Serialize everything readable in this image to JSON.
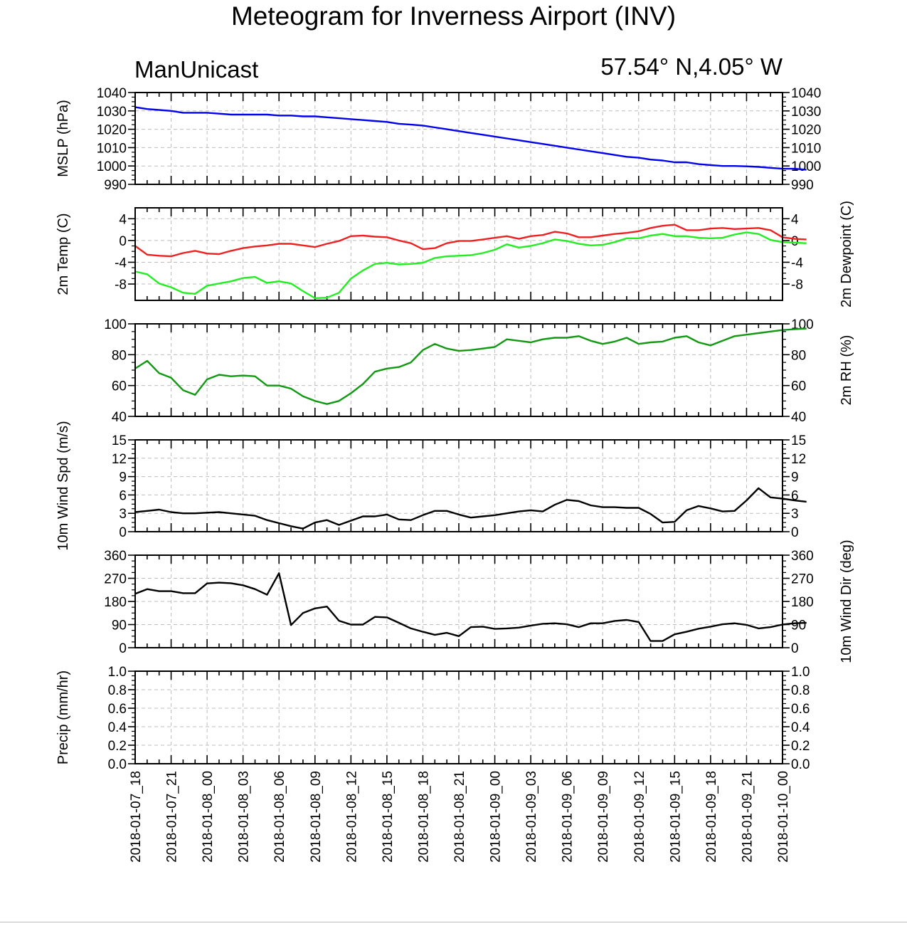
{
  "title": "Meteogram for Inverness Airport (INV)",
  "left_subtitle": "ManUnicast",
  "right_subtitle": "57.54° N,4.05° W",
  "chart_data": {
    "type": "line",
    "x_tick_labels": [
      "2018-01-07_18",
      "2018-01-07_21",
      "2018-01-08_00",
      "2018-01-08_03",
      "2018-01-08_06",
      "2018-01-08_09",
      "2018-01-08_12",
      "2018-01-08_15",
      "2018-01-08_18",
      "2018-01-08_21",
      "2018-01-09_00",
      "2018-01-09_03",
      "2018-01-09_06",
      "2018-01-09_09",
      "2018-01-09_12",
      "2018-01-09_15",
      "2018-01-09_18",
      "2018-01-09_21",
      "2018-01-10_00"
    ],
    "x_step_hours": 1,
    "x_range_hours": [
      0,
      54
    ],
    "grid": true,
    "panels": [
      {
        "id": "mslp",
        "ylabel_left": "MSLP (hPa)",
        "ylabel_right": "",
        "ylim": [
          990,
          1040
        ],
        "yticks": [
          990,
          1000,
          1010,
          1020,
          1030,
          1040
        ],
        "ytick_labels": [
          "990",
          "1000",
          "1010",
          "1020",
          "1030",
          "1040"
        ],
        "right_tick_labels": true,
        "series": [
          {
            "color": "#0000ee",
            "values": [
              1032,
              1031,
              1030.5,
              1030,
              1029,
              1029,
              1029,
              1028.5,
              1028,
              1028,
              1028,
              1028,
              1027.5,
              1027.5,
              1027,
              1027,
              1026.5,
              1026,
              1025.5,
              1025,
              1024.5,
              1024,
              1023,
              1022.5,
              1022,
              1021,
              1020,
              1019,
              1018,
              1017,
              1016,
              1015,
              1014,
              1013,
              1012,
              1011,
              1010,
              1009,
              1008,
              1007,
              1006,
              1005,
              1004.5,
              1003.5,
              1003,
              1002,
              1002,
              1001,
              1000.5,
              1000,
              1000,
              999.8,
              999.5,
              999,
              998.5,
              998.5,
              998
            ]
          }
        ]
      },
      {
        "id": "temp",
        "ylabel_left": "2m Temp (C)",
        "ylabel_right": "2m Dewpoint (C)",
        "ylim": [
          -11,
          6
        ],
        "yticks": [
          -8,
          -4,
          0,
          4
        ],
        "ytick_labels": [
          "-8",
          "-4",
          "0",
          "4"
        ],
        "right_tick_labels": true,
        "series": [
          {
            "color": "#ee2020",
            "values": [
              -1,
              -2.6,
              -2.8,
              -2.9,
              -2.3,
              -1.9,
              -2.4,
              -2.5,
              -1.9,
              -1.4,
              -1.1,
              -0.9,
              -0.6,
              -0.6,
              -0.9,
              -1.2,
              -0.6,
              -0.1,
              0.8,
              0.9,
              0.7,
              0.6,
              0,
              -0.5,
              -1.6,
              -1.4,
              -0.5,
              -0.1,
              -0.1,
              0.2,
              0.5,
              0.8,
              0.3,
              0.8,
              1,
              1.6,
              1.3,
              0.6,
              0.6,
              0.9,
              1.2,
              1.4,
              1.7,
              2.3,
              2.7,
              2.9,
              1.9,
              1.9,
              2.2,
              2.3,
              2.1,
              2.2,
              2.3,
              1.9,
              0.6,
              0.3,
              0.2
            ]
          },
          {
            "color": "#22ee22",
            "values": [
              -5.7,
              -6.2,
              -7.9,
              -8.6,
              -9.6,
              -9.8,
              -8.3,
              -7.9,
              -7.5,
              -6.9,
              -6.7,
              -7.8,
              -7.5,
              -7.9,
              -9.3,
              -10.6,
              -10.5,
              -9.6,
              -7,
              -5.5,
              -4.3,
              -4.1,
              -4.4,
              -4.3,
              -4.1,
              -3.2,
              -2.9,
              -2.8,
              -2.7,
              -2.3,
              -1.7,
              -0.7,
              -1.3,
              -1,
              -0.5,
              0.2,
              -0.1,
              -0.6,
              -0.9,
              -0.8,
              -0.3,
              0.4,
              0.4,
              0.9,
              1.2,
              0.8,
              0.8,
              0.5,
              0.4,
              0.5,
              1.1,
              1.5,
              1.2,
              0.1,
              -0.3,
              -0.4,
              -0.5
            ]
          }
        ]
      },
      {
        "id": "rh",
        "ylabel_left": "",
        "ylabel_right": "2m RH (%)",
        "ylim": [
          40,
          100
        ],
        "yticks": [
          40,
          60,
          80,
          100
        ],
        "ytick_labels": [
          "40",
          "60",
          "80",
          "100"
        ],
        "right_tick_labels": true,
        "series": [
          {
            "color": "#119911",
            "values": [
              71,
              76,
              68,
              65,
              57,
              54,
              64,
              67,
              66,
              66.5,
              66,
              60,
              60,
              58,
              53,
              50,
              48,
              50,
              55,
              61,
              69,
              71,
              72,
              75,
              83,
              87,
              84,
              82.5,
              83,
              84,
              85,
              90,
              89,
              88,
              90,
              91,
              91,
              92,
              89,
              87,
              88.5,
              91,
              87,
              88,
              88.5,
              91,
              92,
              88,
              86,
              89,
              92,
              93,
              94,
              95,
              96,
              96.5,
              97
            ]
          }
        ]
      },
      {
        "id": "wspd",
        "ylabel_left": "10m Wind Spd (m/s)",
        "ylabel_right": "",
        "ylim": [
          0,
          15
        ],
        "yticks": [
          0,
          3,
          6,
          9,
          12,
          15
        ],
        "ytick_labels": [
          "0",
          "3",
          "6",
          "9",
          "12",
          "15"
        ],
        "right_tick_labels": true,
        "series": [
          {
            "color": "#000000",
            "values": [
              3.2,
              3.4,
              3.6,
              3.2,
              3,
              3,
              3.1,
              3.2,
              3,
              2.8,
              2.6,
              1.9,
              1.4,
              0.9,
              0.5,
              1.5,
              1.9,
              1.1,
              1.8,
              2.5,
              2.5,
              2.8,
              2,
              1.9,
              2.7,
              3.4,
              3.4,
              2.8,
              2.3,
              2.5,
              2.7,
              3,
              3.3,
              3.5,
              3.3,
              4.4,
              5.2,
              5,
              4.3,
              4,
              4,
              3.9,
              3.9,
              2.9,
              1.5,
              1.6,
              3.5,
              4.2,
              3.8,
              3.3,
              3.4,
              5.1,
              7.1,
              5.6,
              5.4,
              5.1,
              4.9
            ]
          }
        ]
      },
      {
        "id": "wdir",
        "ylabel_left": "",
        "ylabel_right": "10m Wind Dir (deg)",
        "ylim": [
          0,
          360
        ],
        "yticks": [
          0,
          90,
          180,
          270,
          360
        ],
        "ytick_labels": [
          "0",
          "90",
          "180",
          "270",
          "360"
        ],
        "right_tick_labels": true,
        "series": [
          {
            "color": "#000000",
            "values": [
              210,
              228,
              220,
              220,
              212,
              212,
              250,
              253,
              251,
              243,
              228,
              206,
              290,
              88,
              135,
              153,
              160,
              105,
              90,
              90,
              120,
              118,
              97,
              75,
              62,
              50,
              58,
              45,
              80,
              82,
              73,
              75,
              78,
              86,
              93,
              95,
              91,
              80,
              95,
              95,
              104,
              108,
              100,
              26,
              26,
              52,
              62,
              74,
              82,
              91,
              95,
              89,
              75,
              80,
              90,
              95,
              97
            ]
          }
        ]
      },
      {
        "id": "precip",
        "ylabel_left": "Precip (mm/hr)",
        "ylabel_right": "",
        "ylim": [
          0,
          1
        ],
        "yticks": [
          0,
          0.2,
          0.4,
          0.6,
          0.8,
          1.0
        ],
        "ytick_labels": [
          "0.0",
          "0.2",
          "0.4",
          "0.6",
          "0.8",
          "1.0"
        ],
        "right_tick_labels": true,
        "series": []
      }
    ]
  }
}
